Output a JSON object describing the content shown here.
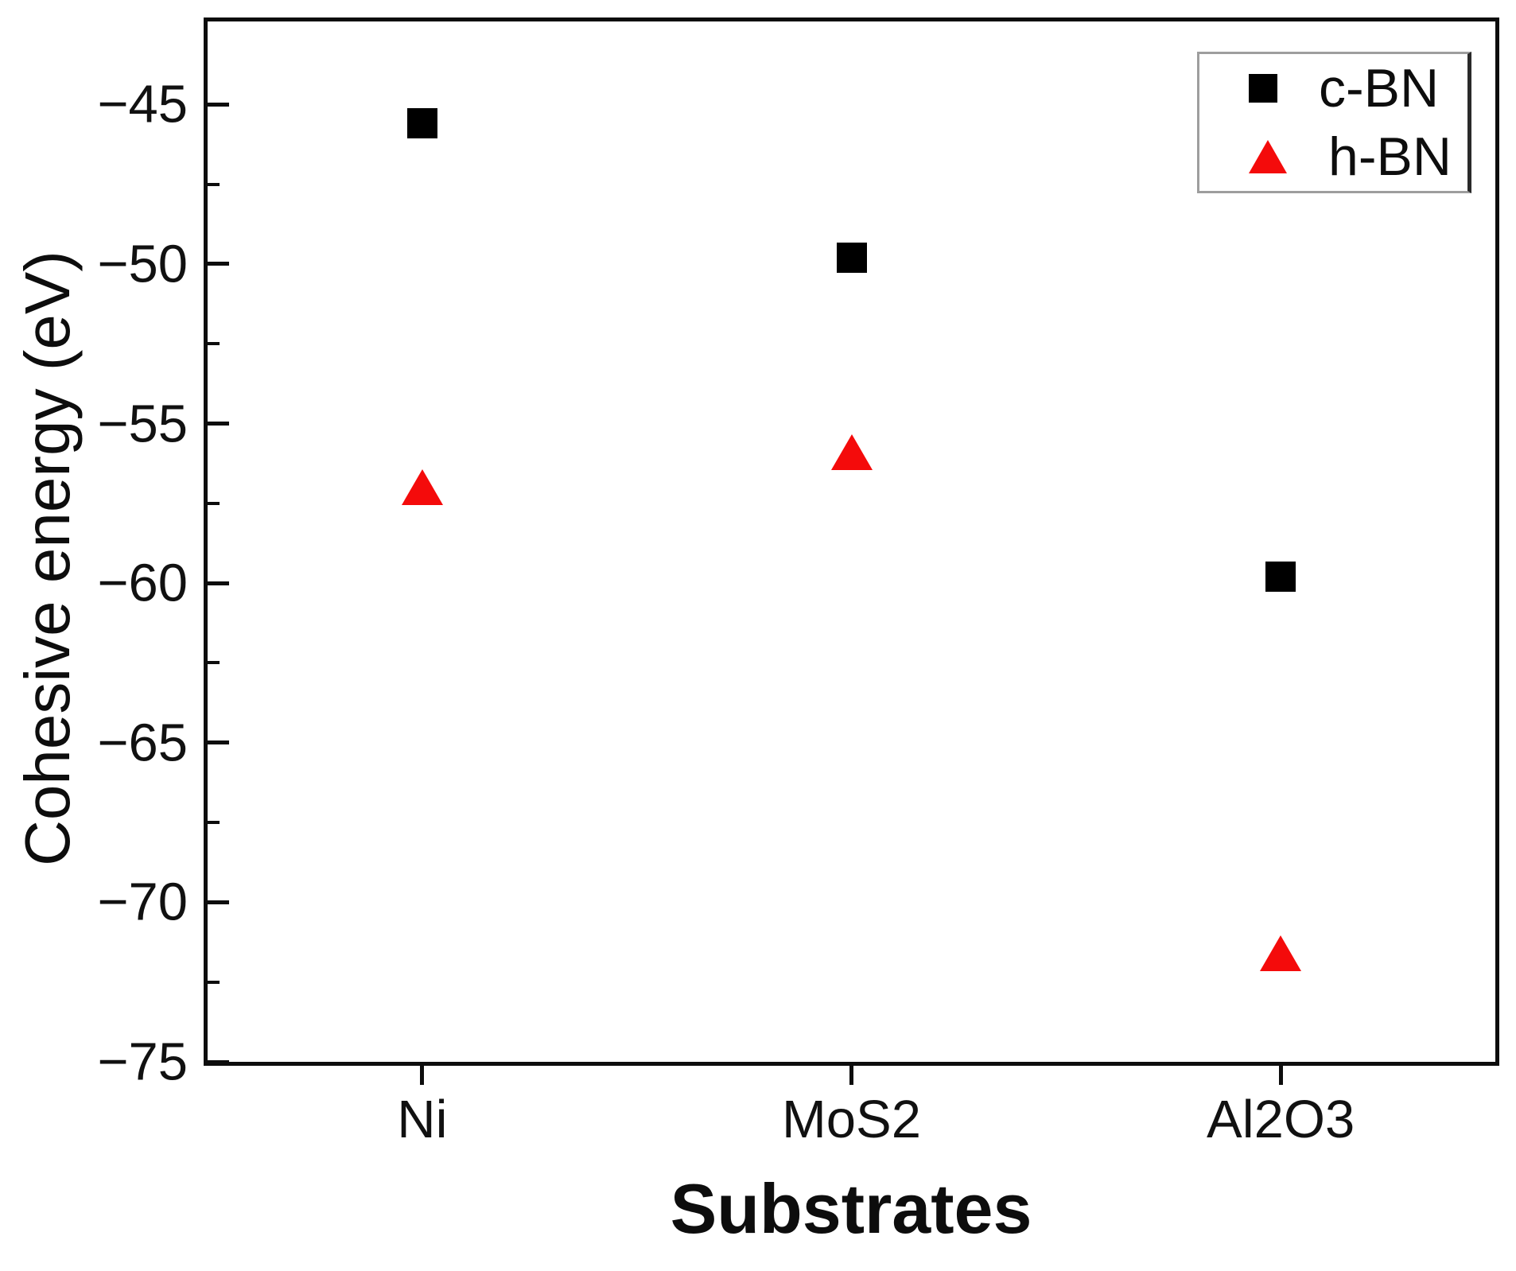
{
  "figure": {
    "background_color": "#ffffff",
    "axis_color": "#0d0d0d"
  },
  "chart_data": {
    "type": "scatter",
    "title": "",
    "xlabel": "Substrates",
    "ylabel": "Cohesive energy (eV)",
    "categories": [
      "Ni",
      "MoS2",
      "Al2O3"
    ],
    "series": [
      {
        "name": "c-BN",
        "marker": "square",
        "color": "#000000",
        "values": [
          -45.6,
          -49.8,
          -59.8
        ]
      },
      {
        "name": "h-BN",
        "marker": "triangle",
        "color": "#f40b0b",
        "values": [
          -57.0,
          -55.9,
          -71.6
        ]
      }
    ],
    "ylim": [
      -75,
      -42.4
    ],
    "yticks": [
      -45,
      -50,
      -55,
      -60,
      -65,
      -70,
      -75
    ],
    "ytick_labels": [
      "−45",
      "−50",
      "−55",
      "−60",
      "−65",
      "−70",
      "−75"
    ],
    "yticks_minor": [
      -47.5,
      -52.5,
      -57.5,
      -62.5,
      -67.5,
      -72.5
    ],
    "grid": false,
    "legend_position": "top-right",
    "legend_items": [
      "c-BN",
      "h-BN"
    ]
  }
}
